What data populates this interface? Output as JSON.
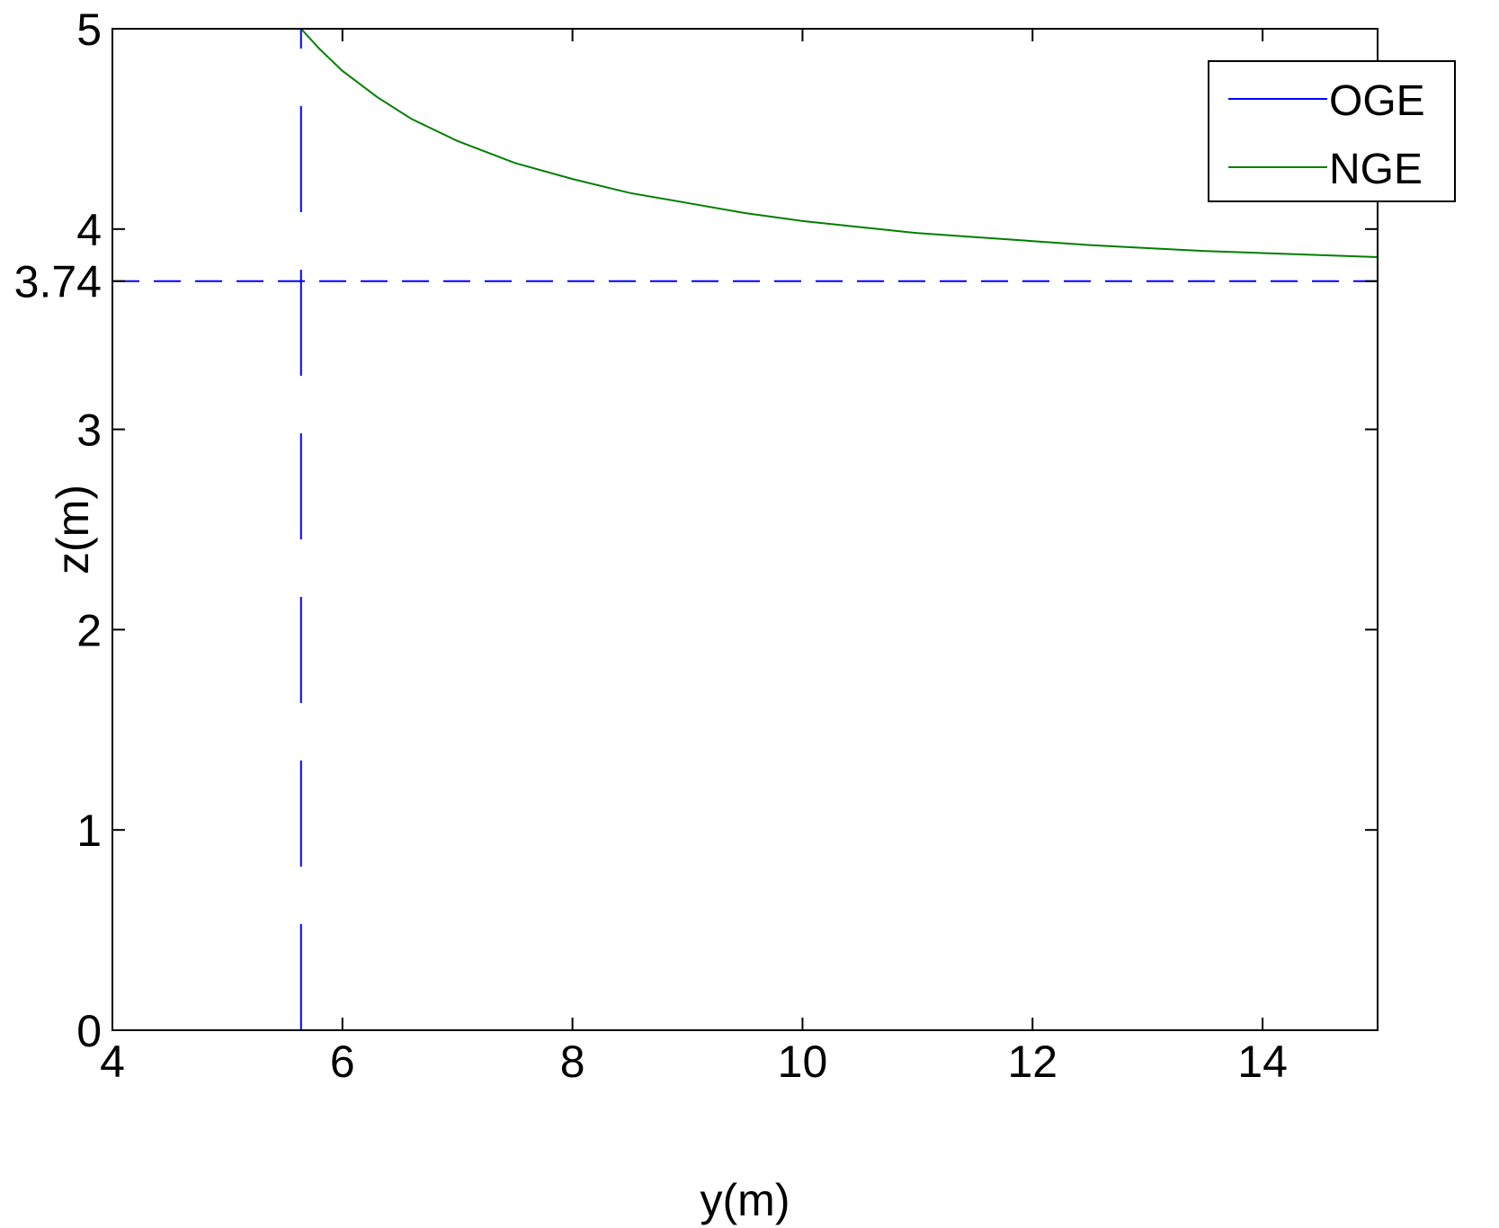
{
  "chart_data": {
    "type": "line",
    "title": "",
    "xlabel": "y(m)",
    "ylabel": "z(m)",
    "xlim": [
      4,
      15
    ],
    "ylim": [
      0,
      5
    ],
    "x_ticks": [
      4,
      6,
      8,
      10,
      12,
      14
    ],
    "y_ticks": [
      0,
      1,
      2,
      3,
      3.74,
      4,
      5
    ],
    "x_tick_labels": [
      "4",
      "6",
      "8",
      "10",
      "12",
      "14"
    ],
    "y_tick_labels": [
      "0",
      "1",
      "2",
      "3",
      "3.74",
      "4",
      "5"
    ],
    "grid": false,
    "legend_position": "top-right",
    "series": [
      {
        "name": "OGE",
        "color": "#0000ff",
        "style": "dashed",
        "segments": [
          {
            "x": [
              5.64,
              5.64
            ],
            "y": [
              0,
              5
            ]
          },
          {
            "x": [
              4,
              15
            ],
            "y": [
              3.74,
              3.74
            ]
          }
        ]
      },
      {
        "name": "NGE",
        "color": "#007f00",
        "style": "solid",
        "x": [
          5.64,
          5.8,
          6.0,
          6.3,
          6.6,
          7.0,
          7.5,
          8.0,
          8.5,
          9.0,
          9.5,
          10.0,
          10.5,
          11.0,
          11.5,
          12.0,
          12.5,
          13.0,
          13.5,
          14.0,
          14.5,
          15.0
        ],
        "y": [
          5.0,
          4.9,
          4.79,
          4.66,
          4.55,
          4.44,
          4.33,
          4.25,
          4.18,
          4.13,
          4.08,
          4.04,
          4.01,
          3.98,
          3.96,
          3.94,
          3.92,
          3.905,
          3.89,
          3.88,
          3.87,
          3.86
        ]
      }
    ]
  }
}
